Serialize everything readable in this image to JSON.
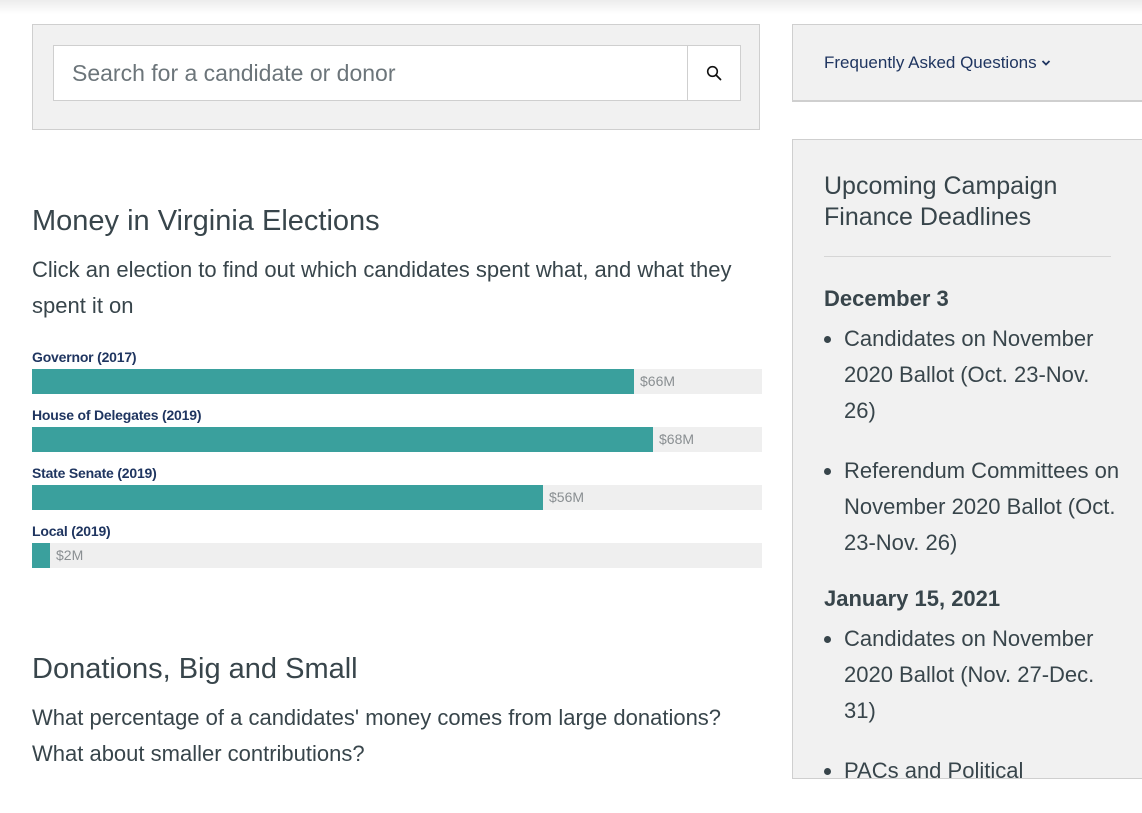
{
  "search": {
    "placeholder": "Search for a candidate or donor",
    "button_icon": "search-icon"
  },
  "money_section": {
    "title": "Money in Virginia Elections",
    "description": "Click an election to find out which candidates spent what, and what they spent it on"
  },
  "chart_data": {
    "type": "bar",
    "orientation": "horizontal",
    "categories": [
      "Governor (2017)",
      "House of Delegates (2019)",
      "State Senate (2019)",
      "Local (2019)"
    ],
    "values": [
      66,
      68,
      56,
      2
    ],
    "value_labels": [
      "$66M",
      "$68M",
      "$56M",
      "$2M"
    ],
    "unit": "$M",
    "xlim": [
      0,
      80
    ],
    "grid": false,
    "colors": {
      "bar": "#3aa09d",
      "track": "#efefef"
    }
  },
  "donations_section": {
    "title": "Donations, Big and Small",
    "description": "What percentage of a candidates' money comes from large donations? What about smaller contributions?"
  },
  "faq": {
    "label": "Frequently Asked Questions",
    "icon": "chevron-down-icon"
  },
  "deadlines": {
    "title": "Upcoming Campaign Finance Deadlines",
    "groups": [
      {
        "date": "December 3",
        "items": [
          "Candidates on November 2020 Ballot (Oct. 23-Nov. 26)",
          "Referendum Committees on November 2020 Ballot (Oct. 23-Nov. 26)"
        ]
      },
      {
        "date": "January 15, 2021",
        "items": [
          "Candidates on November 2020 Ballot (Nov. 27-Dec. 31)",
          "PACs and Political"
        ]
      }
    ]
  },
  "colors": {
    "text": "#38454b",
    "link": "#1f3560",
    "accent": "#3aa09d",
    "panel": "#f1f1f1"
  }
}
